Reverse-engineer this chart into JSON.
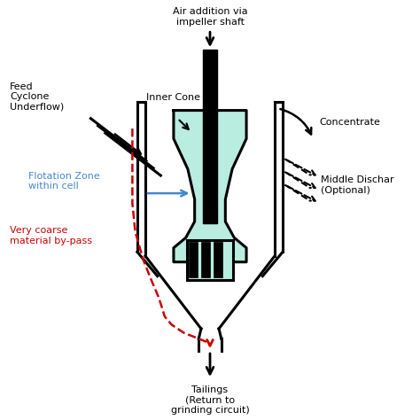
{
  "background_color": "#ffffff",
  "colors": {
    "black": "#000000",
    "red": "#cc0000",
    "blue": "#4488cc",
    "green_fill": "#b8ede0"
  },
  "labels": {
    "air_addition": "Air addition via\nimpeller shaft",
    "inner_cone": "Inner Cone",
    "feed_cyclone": "Feed\nCyclone\nUnderflow)",
    "flotation_zone": "Flotation Zone\nwithin cell",
    "very_coarse": "Very coarse\nmaterial by-pass",
    "concentrate": "Concentrate",
    "middle_discharge": "Middle Dischar\n(Optional)",
    "tailings": "Tailings\n(Return to\ngrinding circuit)"
  }
}
